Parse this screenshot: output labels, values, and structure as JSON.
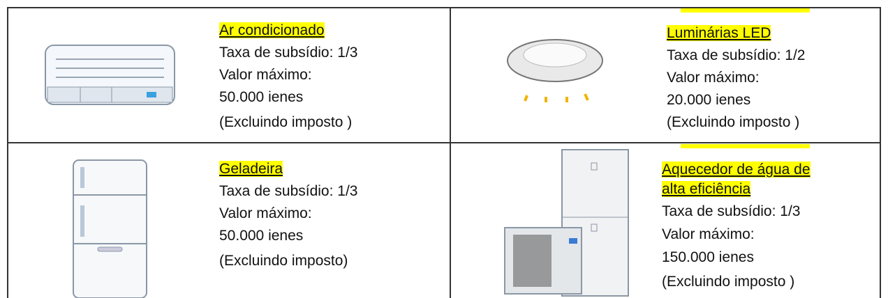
{
  "cells": [
    {
      "title": [
        "Ar condicionado"
      ],
      "rate": "Taxa de subsídio: 1/3",
      "max_label": "Valor máximo:",
      "amount": "50.000 ienes",
      "note": "(Excluindo imposto )"
    },
    {
      "title": [
        "Luminárias LED"
      ],
      "rate": "Taxa de subsídio: 1/2",
      "max_label": "Valor máximo:",
      "amount": "20.000 ienes",
      "note": "(Excluindo imposto )"
    },
    {
      "title": [
        "Geladeira"
      ],
      "rate": "Taxa de subsídio: 1/3",
      "max_label": "Valor máximo:",
      "amount": "50.000 ienes",
      "note": "(Excluindo imposto)"
    },
    {
      "title": [
        "Aquecedor de água de",
        "alta eficiência"
      ],
      "rate": "Taxa de subsídio: 1/3",
      "max_label": "Valor máximo:",
      "amount": "150.000 ienes",
      "note": "(Excluindo imposto )"
    }
  ]
}
